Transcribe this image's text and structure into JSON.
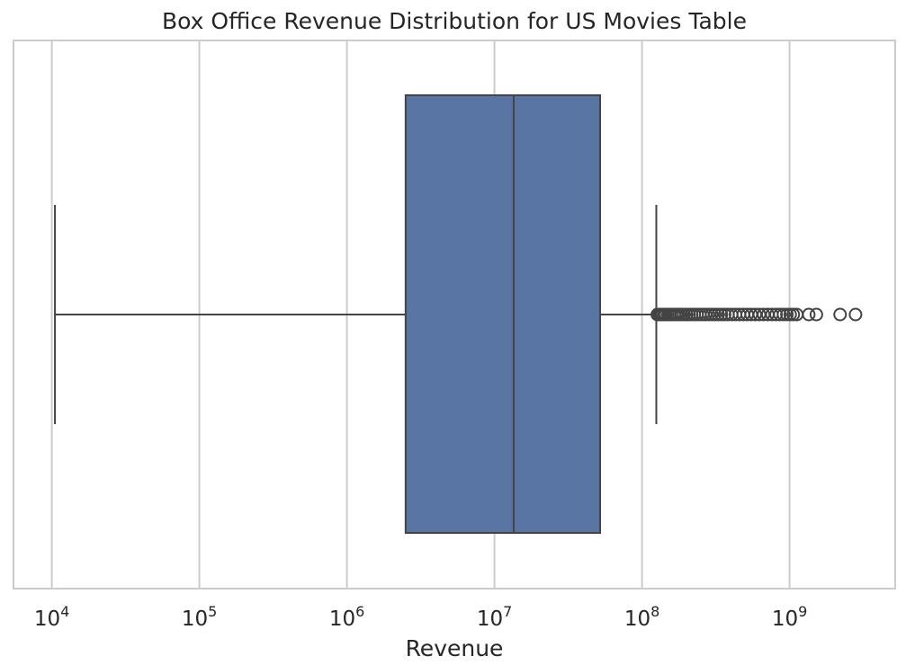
{
  "chart_data": {
    "type": "boxplot",
    "title": "Box Office Revenue Distribution for US Movies Table",
    "xlabel": "Revenue",
    "ylabel": "",
    "x_scale": "log",
    "xlim": [
      5500,
      5200000000
    ],
    "x_ticks": [
      {
        "value": 10000,
        "base": "10",
        "exp": "4"
      },
      {
        "value": 100000,
        "base": "10",
        "exp": "5"
      },
      {
        "value": 1000000,
        "base": "10",
        "exp": "6"
      },
      {
        "value": 10000000,
        "base": "10",
        "exp": "7"
      },
      {
        "value": 100000000,
        "base": "10",
        "exp": "8"
      },
      {
        "value": 1000000000,
        "base": "10",
        "exp": "9"
      }
    ],
    "grid": true,
    "orientation": "horizontal",
    "box": {
      "whisker_low": 10500,
      "q1": 2500000,
      "median": 13500000,
      "q3": 52000000,
      "whisker_high": 125000000
    },
    "outliers": [
      127000000,
      130000000,
      133000000,
      137000000,
      141000000,
      145000000,
      150000000,
      155000000,
      160000000,
      166000000,
      172000000,
      178000000,
      185000000,
      192000000,
      200000000,
      208000000,
      217000000,
      226000000,
      236000000,
      247000000,
      258000000,
      270000000,
      283000000,
      297000000,
      312000000,
      328000000,
      345000000,
      363000000,
      383000000,
      405000000,
      430000000,
      457000000,
      486000000,
      517000000,
      550000000,
      586000000,
      625000000,
      667000000,
      712000000,
      760000000,
      810000000,
      860000000,
      910000000,
      960000000,
      1010000000,
      1060000000,
      1120000000,
      1350000000,
      1520000000,
      2200000000,
      2800000000
    ],
    "colors": {
      "box_fill": "#5875a4",
      "line": "#444444",
      "grid": "#cccccc",
      "frame": "#cccccc"
    }
  }
}
